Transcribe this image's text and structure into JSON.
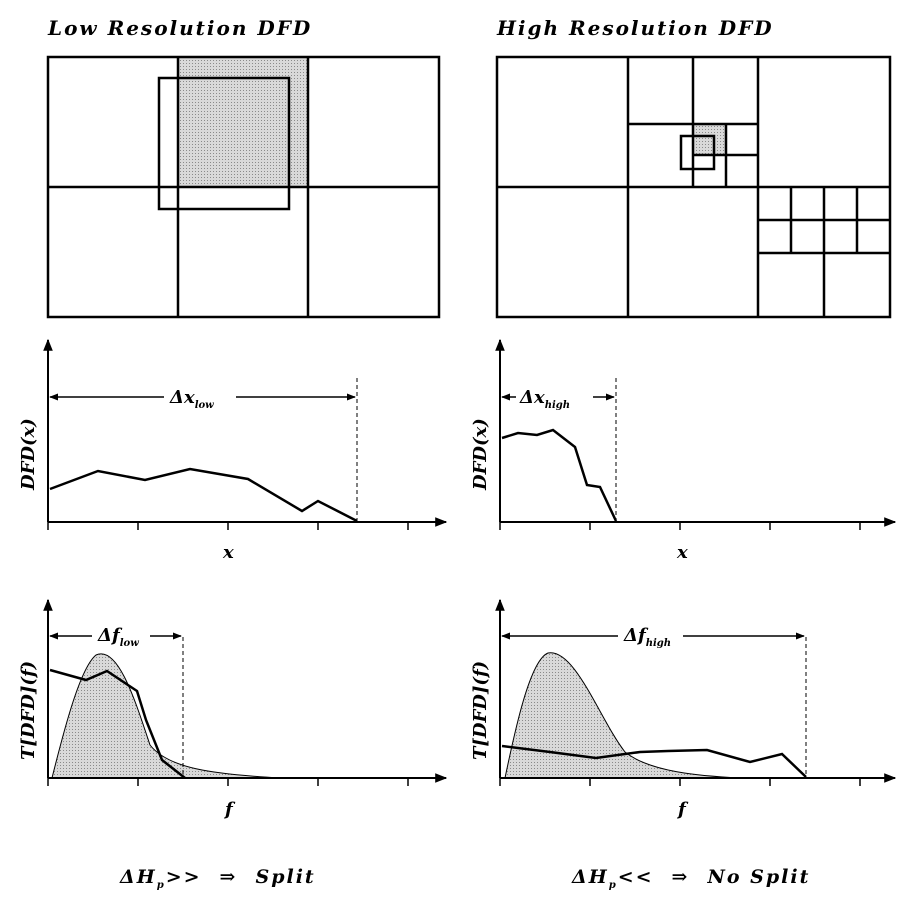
{
  "left": {
    "title": "Low Resolution DFD",
    "dfd_ylabel": "DFD(x)",
    "dfd_xlabel": "x",
    "delta_x_symbol": "Δx",
    "delta_x_sub": "low",
    "t_ylabel": "T[DFD](f)",
    "t_xlabel": "f",
    "delta_f_symbol": "Δf",
    "delta_f_sub": "low",
    "caption_lhs": "ΔH",
    "caption_sub": "p",
    "caption_op": ">>",
    "caption_arrow": "⇒",
    "caption_result": "Split"
  },
  "right": {
    "title": "High Resolution DFD",
    "dfd_ylabel": "DFD(x)",
    "dfd_xlabel": "x",
    "delta_x_symbol": "Δx",
    "delta_x_sub": "high",
    "t_ylabel": "T[DFD](f)",
    "t_xlabel": "f",
    "delta_f_symbol": "Δf",
    "delta_f_sub": "high",
    "caption_lhs": "ΔH",
    "caption_sub": "p",
    "caption_op": "<<",
    "caption_arrow": "⇒",
    "caption_result": "No Split"
  },
  "colors": {
    "ink": "#000000",
    "stipple": "#c8c8c8",
    "background": "#ffffff"
  }
}
